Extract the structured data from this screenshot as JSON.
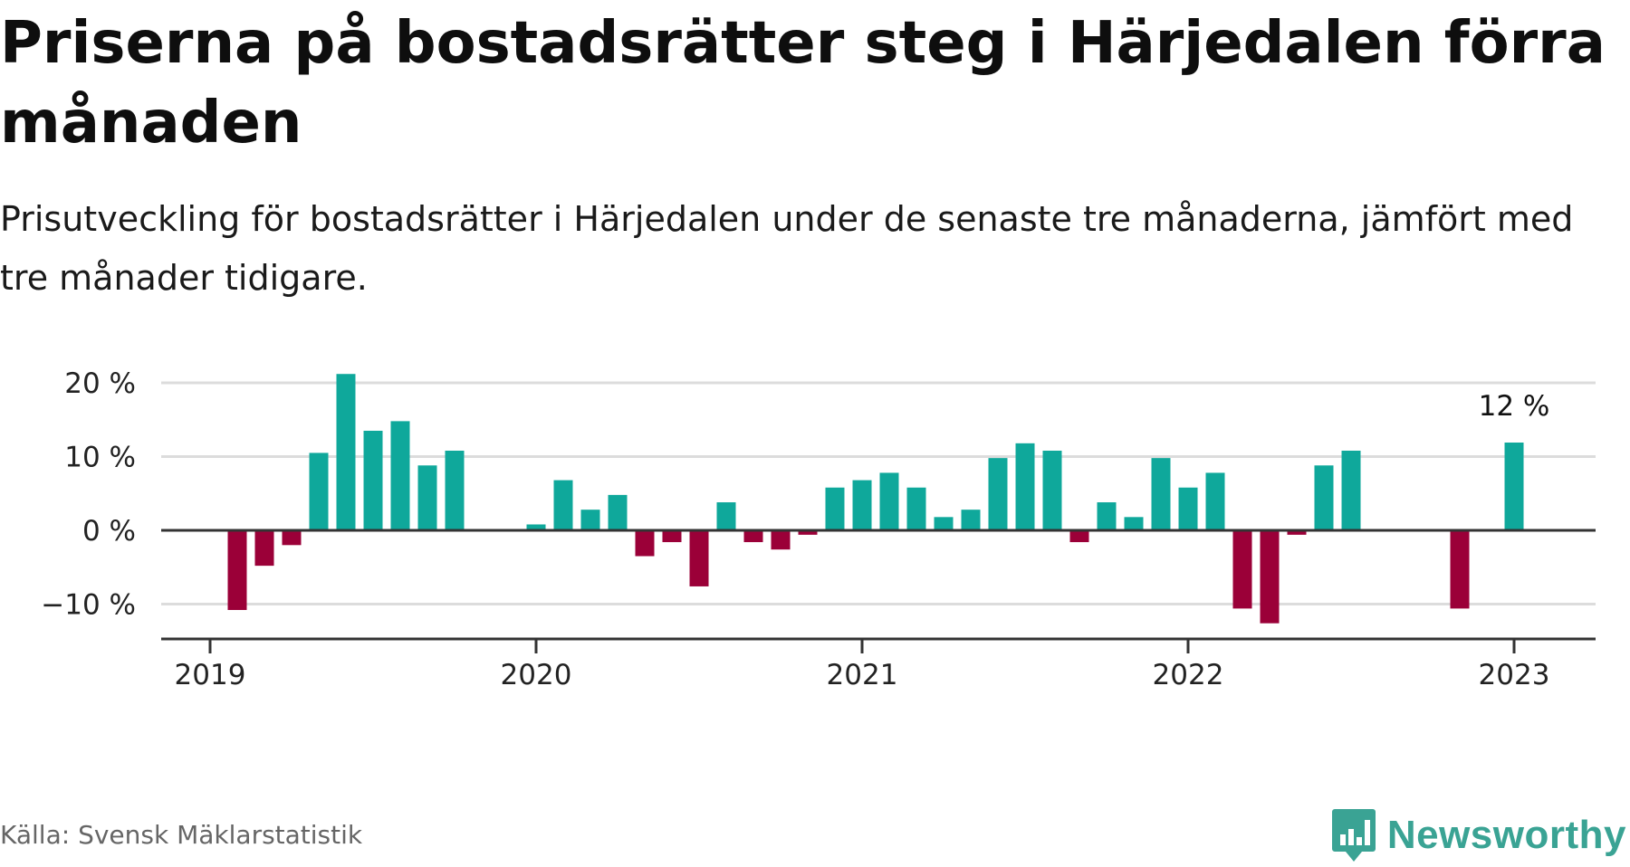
{
  "header": {
    "title": "Priserna på bostadsrätter steg i Härjedalen förra månaden",
    "subtitle": "Prisutveckling för bostadsrätter i Härjedalen under de senaste tre månaderna, jämfört med tre månader tidigare."
  },
  "footer": {
    "source": "Källa: Svensk Mäklarstatistik",
    "brand": "Newsworthy"
  },
  "colors": {
    "positive": "#0fa89b",
    "negative": "#9b0038",
    "grid": "#dcdcdc",
    "axis": "#333333",
    "brand": "#3aa394"
  },
  "icons": {
    "brand_logo": "newsworthy-bar-chart-speech-bubble-icon"
  },
  "chart_data": {
    "type": "bar",
    "x_unit": "month",
    "y_unit": "%",
    "ylim": [
      -15,
      22
    ],
    "yticks": [
      -10,
      0,
      10,
      20
    ],
    "ytick_labels": [
      "−10 %",
      "0 %",
      "10 %",
      "20 %"
    ],
    "xticks": [
      "2019-01",
      "2020-01",
      "2021-01",
      "2022-01",
      "2023-01"
    ],
    "xtick_labels": [
      "2019",
      "2020",
      "2021",
      "2022",
      "2023"
    ],
    "grid": true,
    "legend": "none",
    "annotation": {
      "x": "2023-01",
      "text": "12 %"
    },
    "x": [
      "2019-01",
      "2019-02",
      "2019-03",
      "2019-04",
      "2019-05",
      "2019-06",
      "2019-07",
      "2019-08",
      "2019-09",
      "2019-10",
      "2019-11",
      "2019-12",
      "2020-01",
      "2020-02",
      "2020-03",
      "2020-04",
      "2020-05",
      "2020-06",
      "2020-07",
      "2020-08",
      "2020-09",
      "2020-10",
      "2020-11",
      "2020-12",
      "2021-01",
      "2021-02",
      "2021-03",
      "2021-04",
      "2021-05",
      "2021-06",
      "2021-07",
      "2021-08",
      "2021-09",
      "2021-10",
      "2021-11",
      "2021-12",
      "2022-01",
      "2022-02",
      "2022-03",
      "2022-04",
      "2022-05",
      "2022-06",
      "2022-07",
      "2022-08",
      "2022-09",
      "2022-10",
      "2022-11",
      "2022-12",
      "2023-01"
    ],
    "values": [
      0,
      -10.8,
      -4.8,
      -2,
      10.5,
      21.2,
      13.5,
      14.8,
      8.8,
      10.8,
      0,
      0,
      0.8,
      6.8,
      2.8,
      4.8,
      -3.5,
      -1.6,
      -7.6,
      3.8,
      -1.6,
      -2.6,
      -0.6,
      5.8,
      6.8,
      7.8,
      5.8,
      1.8,
      2.8,
      9.8,
      11.8,
      10.8,
      -1.6,
      3.8,
      1.8,
      9.8,
      5.8,
      7.8,
      -10.6,
      -12.6,
      -0.6,
      8.8,
      10.8,
      0,
      0,
      0,
      -10.6,
      0,
      11.9
    ]
  }
}
